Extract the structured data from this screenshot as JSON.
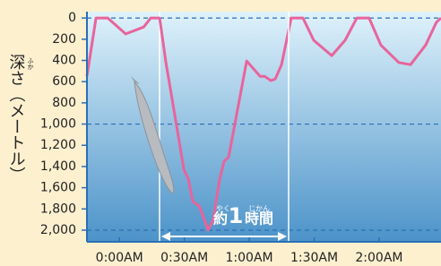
{
  "chart_data": {
    "type": "line",
    "y_label": "深さ（メートル）",
    "y_label_ruby": "ふか",
    "annotation": {
      "pre": "約",
      "num": "1",
      "post": "時間",
      "ruby_pre": "やく",
      "ruby_post": "じかん"
    },
    "x": [
      -15,
      -10.8,
      -5.4,
      2.9,
      11.2,
      14.5,
      18.6,
      21.5,
      25.7,
      29.8,
      31.9,
      33.9,
      36.8,
      41,
      43.4,
      46.3,
      48.4,
      50.5,
      58.8,
      65,
      67.1,
      70,
      72,
      74.9,
      79.4,
      84.8,
      89.8,
      98.1,
      104.3,
      109.7,
      115.4,
      120.8,
      129.1,
      134.5,
      141.5,
      146.5,
      148.6
    ],
    "values": [
      550,
      0,
      0,
      150,
      85,
      0,
      0,
      420,
      930,
      1430,
      1520,
      1730,
      1770,
      2000,
      1900,
      1520,
      1350,
      1310,
      405,
      550,
      550,
      590,
      575,
      440,
      0,
      0,
      210,
      355,
      210,
      0,
      0,
      255,
      420,
      440,
      255,
      40,
      0
    ],
    "color": "#e8649c",
    "xlim": [
      -15,
      148.6
    ],
    "xticks": [
      {
        "value": 0,
        "label": "0:00AM"
      },
      {
        "value": 30,
        "label": "0:30AM"
      },
      {
        "value": 60,
        "label": "1:00AM"
      },
      {
        "value": 90,
        "label": "1:30AM"
      },
      {
        "value": 120,
        "label": "2:00AM"
      }
    ],
    "ylim": [
      -60,
      2110
    ],
    "y_inverted": true,
    "yticks": [
      0,
      200,
      400,
      600,
      800,
      {
        "value": 1000,
        "label": "1,000"
      },
      {
        "value": 1200,
        "label": "1,200"
      },
      {
        "value": 1400,
        "label": "1,400"
      },
      {
        "value": 1600,
        "label": "1,600"
      },
      {
        "value": 1800,
        "label": "1,800"
      },
      {
        "value": 2000,
        "label": "2,000"
      }
    ],
    "grid_lines": [
      0,
      1000,
      2000
    ]
  }
}
